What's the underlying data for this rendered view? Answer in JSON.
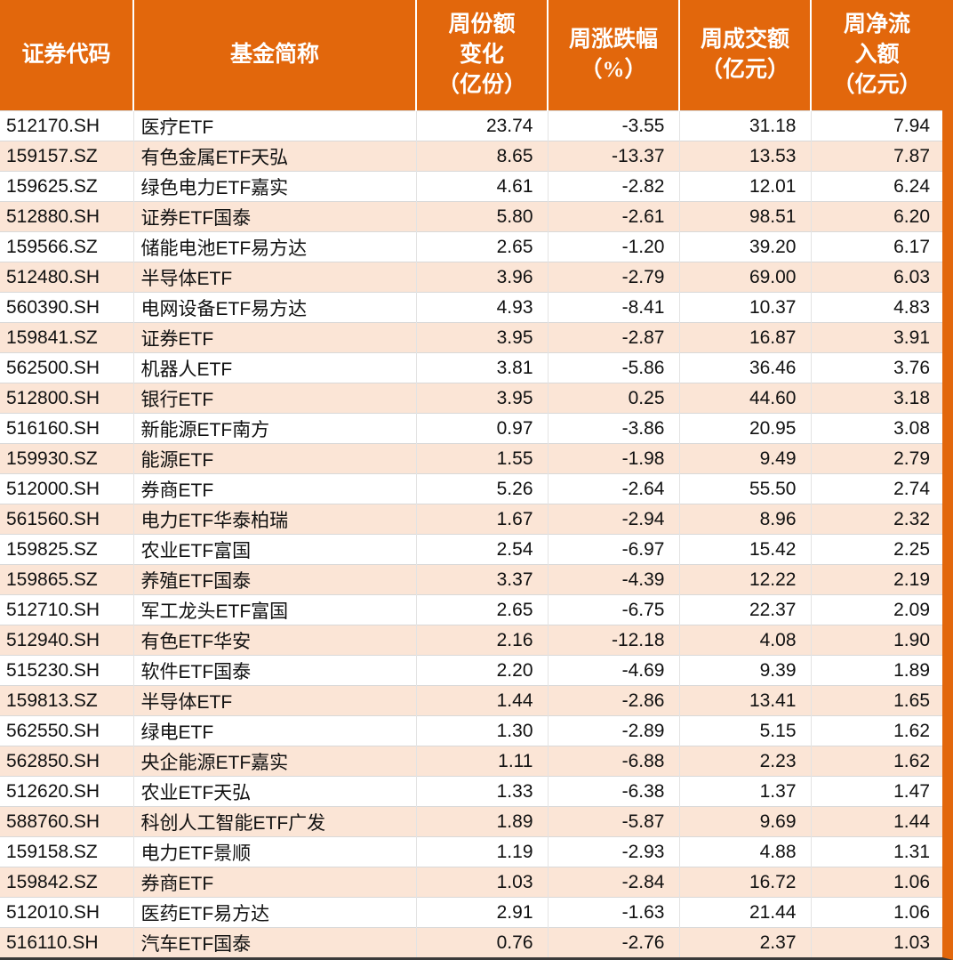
{
  "colors": {
    "header_bg": "#e2670c",
    "header_text": "#ffffff",
    "stripe_bg": "#fbe5d6",
    "body_text": "#111111",
    "right_accent_bar": "#e2670c",
    "bottom_border": "#3a3a3a"
  },
  "chart_data": {
    "type": "table",
    "columns": [
      {
        "key": "code",
        "label": "证券代码",
        "lines": [
          "证券代码"
        ]
      },
      {
        "key": "name",
        "label": "基金简称",
        "lines": [
          "基金简称"
        ]
      },
      {
        "key": "share_change",
        "label": "周份额变化（亿份）",
        "lines": [
          "周份额",
          "变化",
          "（亿份）"
        ]
      },
      {
        "key": "pct_change",
        "label": "周涨跌幅（%）",
        "lines": [
          "周涨跌幅",
          "（%）"
        ]
      },
      {
        "key": "turnover",
        "label": "周成交额（亿元）",
        "lines": [
          "周成交额",
          "（亿元）"
        ]
      },
      {
        "key": "net_inflow",
        "label": "周净流入额（亿元）",
        "lines": [
          "周净流",
          "入额",
          "（亿元）"
        ]
      }
    ],
    "rows": [
      {
        "code": "512170.SH",
        "name": "医疗ETF",
        "share_change": "23.74",
        "pct_change": "-3.55",
        "turnover": "31.18",
        "net_inflow": "7.94"
      },
      {
        "code": "159157.SZ",
        "name": "有色金属ETF天弘",
        "share_change": "8.65",
        "pct_change": "-13.37",
        "turnover": "13.53",
        "net_inflow": "7.87"
      },
      {
        "code": "159625.SZ",
        "name": "绿色电力ETF嘉实",
        "share_change": "4.61",
        "pct_change": "-2.82",
        "turnover": "12.01",
        "net_inflow": "6.24"
      },
      {
        "code": "512880.SH",
        "name": "证券ETF国泰",
        "share_change": "5.80",
        "pct_change": "-2.61",
        "turnover": "98.51",
        "net_inflow": "6.20"
      },
      {
        "code": "159566.SZ",
        "name": "储能电池ETF易方达",
        "share_change": "2.65",
        "pct_change": "-1.20",
        "turnover": "39.20",
        "net_inflow": "6.17"
      },
      {
        "code": "512480.SH",
        "name": "半导体ETF",
        "share_change": "3.96",
        "pct_change": "-2.79",
        "turnover": "69.00",
        "net_inflow": "6.03"
      },
      {
        "code": "560390.SH",
        "name": "电网设备ETF易方达",
        "share_change": "4.93",
        "pct_change": "-8.41",
        "turnover": "10.37",
        "net_inflow": "4.83"
      },
      {
        "code": "159841.SZ",
        "name": "证券ETF",
        "share_change": "3.95",
        "pct_change": "-2.87",
        "turnover": "16.87",
        "net_inflow": "3.91"
      },
      {
        "code": "562500.SH",
        "name": "机器人ETF",
        "share_change": "3.81",
        "pct_change": "-5.86",
        "turnover": "36.46",
        "net_inflow": "3.76"
      },
      {
        "code": "512800.SH",
        "name": "银行ETF",
        "share_change": "3.95",
        "pct_change": "0.25",
        "turnover": "44.60",
        "net_inflow": "3.18"
      },
      {
        "code": "516160.SH",
        "name": "新能源ETF南方",
        "share_change": "0.97",
        "pct_change": "-3.86",
        "turnover": "20.95",
        "net_inflow": "3.08"
      },
      {
        "code": "159930.SZ",
        "name": "能源ETF",
        "share_change": "1.55",
        "pct_change": "-1.98",
        "turnover": "9.49",
        "net_inflow": "2.79"
      },
      {
        "code": "512000.SH",
        "name": "券商ETF",
        "share_change": "5.26",
        "pct_change": "-2.64",
        "turnover": "55.50",
        "net_inflow": "2.74"
      },
      {
        "code": "561560.SH",
        "name": "电力ETF华泰柏瑞",
        "share_change": "1.67",
        "pct_change": "-2.94",
        "turnover": "8.96",
        "net_inflow": "2.32"
      },
      {
        "code": "159825.SZ",
        "name": "农业ETF富国",
        "share_change": "2.54",
        "pct_change": "-6.97",
        "turnover": "15.42",
        "net_inflow": "2.25"
      },
      {
        "code": "159865.SZ",
        "name": "养殖ETF国泰",
        "share_change": "3.37",
        "pct_change": "-4.39",
        "turnover": "12.22",
        "net_inflow": "2.19"
      },
      {
        "code": "512710.SH",
        "name": "军工龙头ETF富国",
        "share_change": "2.65",
        "pct_change": "-6.75",
        "turnover": "22.37",
        "net_inflow": "2.09"
      },
      {
        "code": "512940.SH",
        "name": "有色ETF华安",
        "share_change": "2.16",
        "pct_change": "-12.18",
        "turnover": "4.08",
        "net_inflow": "1.90"
      },
      {
        "code": "515230.SH",
        "name": "软件ETF国泰",
        "share_change": "2.20",
        "pct_change": "-4.69",
        "turnover": "9.39",
        "net_inflow": "1.89"
      },
      {
        "code": "159813.SZ",
        "name": "半导体ETF",
        "share_change": "1.44",
        "pct_change": "-2.86",
        "turnover": "13.41",
        "net_inflow": "1.65"
      },
      {
        "code": "562550.SH",
        "name": "绿电ETF",
        "share_change": "1.30",
        "pct_change": "-2.89",
        "turnover": "5.15",
        "net_inflow": "1.62"
      },
      {
        "code": "562850.SH",
        "name": "央企能源ETF嘉实",
        "share_change": "1.11",
        "pct_change": "-6.88",
        "turnover": "2.23",
        "net_inflow": "1.62"
      },
      {
        "code": "512620.SH",
        "name": "农业ETF天弘",
        "share_change": "1.33",
        "pct_change": "-6.38",
        "turnover": "1.37",
        "net_inflow": "1.47"
      },
      {
        "code": "588760.SH",
        "name": "科创人工智能ETF广发",
        "share_change": "1.89",
        "pct_change": "-5.87",
        "turnover": "9.69",
        "net_inflow": "1.44"
      },
      {
        "code": "159158.SZ",
        "name": "电力ETF景顺",
        "share_change": "1.19",
        "pct_change": "-2.93",
        "turnover": "4.88",
        "net_inflow": "1.31"
      },
      {
        "code": "159842.SZ",
        "name": "券商ETF",
        "share_change": "1.03",
        "pct_change": "-2.84",
        "turnover": "16.72",
        "net_inflow": "1.06"
      },
      {
        "code": "512010.SH",
        "name": "医药ETF易方达",
        "share_change": "2.91",
        "pct_change": "-1.63",
        "turnover": "21.44",
        "net_inflow": "1.06"
      },
      {
        "code": "516110.SH",
        "name": "汽车ETF国泰",
        "share_change": "0.76",
        "pct_change": "-2.76",
        "turnover": "2.37",
        "net_inflow": "1.03"
      }
    ]
  }
}
